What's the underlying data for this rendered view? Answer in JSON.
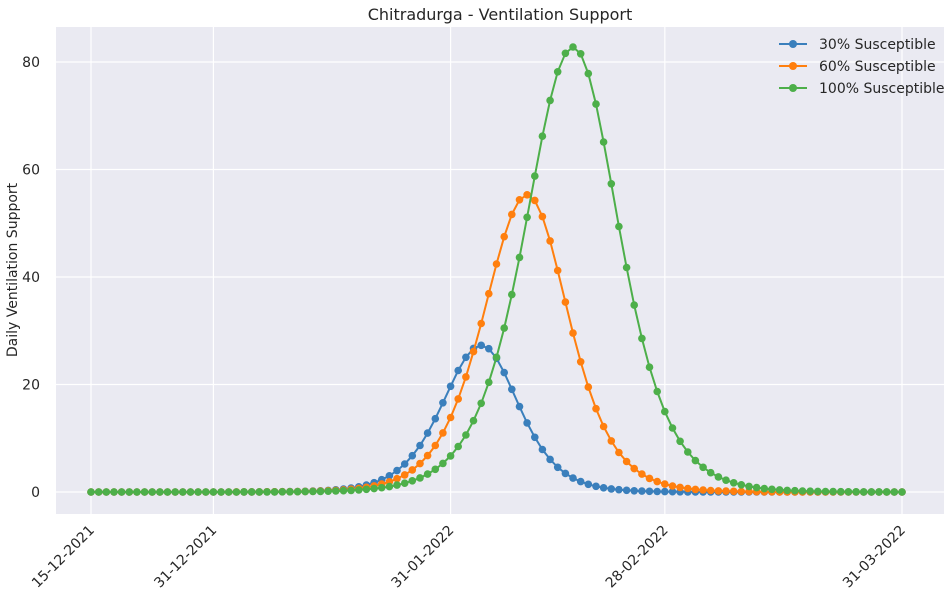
{
  "chart_data": {
    "type": "line",
    "title": "Chitradurga - Ventilation Support",
    "xlabel": "",
    "ylabel": "Daily Ventilation Support",
    "x_start": "15-12-2021",
    "x_end": "31-03-2022",
    "x_ticks": [
      "15-12-2021",
      "31-12-2021",
      "31-01-2022",
      "28-02-2022",
      "31-03-2022"
    ],
    "y_ticks": [
      0,
      20,
      40,
      60,
      80
    ],
    "ylim": [
      -4,
      87
    ],
    "grid": true,
    "legend_position": "top-right",
    "colors": {
      "plot_background": "#eaeaf2",
      "grid": "#ffffff",
      "text": "#262626"
    },
    "series": [
      {
        "name": "30% Susceptible",
        "color": "#3a7fbc",
        "peak_date": "04-02-2022",
        "peak_value": 27.3,
        "rise_scale_days": 6.8,
        "fall_scale_days": 6.5
      },
      {
        "name": "60% Susceptible",
        "color": "#ff7f0e",
        "peak_date": "10-02-2022",
        "peak_value": 55.3,
        "rise_scale_days": 7.6,
        "fall_scale_days": 7.2
      },
      {
        "name": "100% Susceptible",
        "color": "#4daf4a",
        "peak_date": "16-02-2022",
        "peak_value": 82.8,
        "rise_scale_days": 8.3,
        "fall_scale_days": 8.0
      }
    ]
  }
}
